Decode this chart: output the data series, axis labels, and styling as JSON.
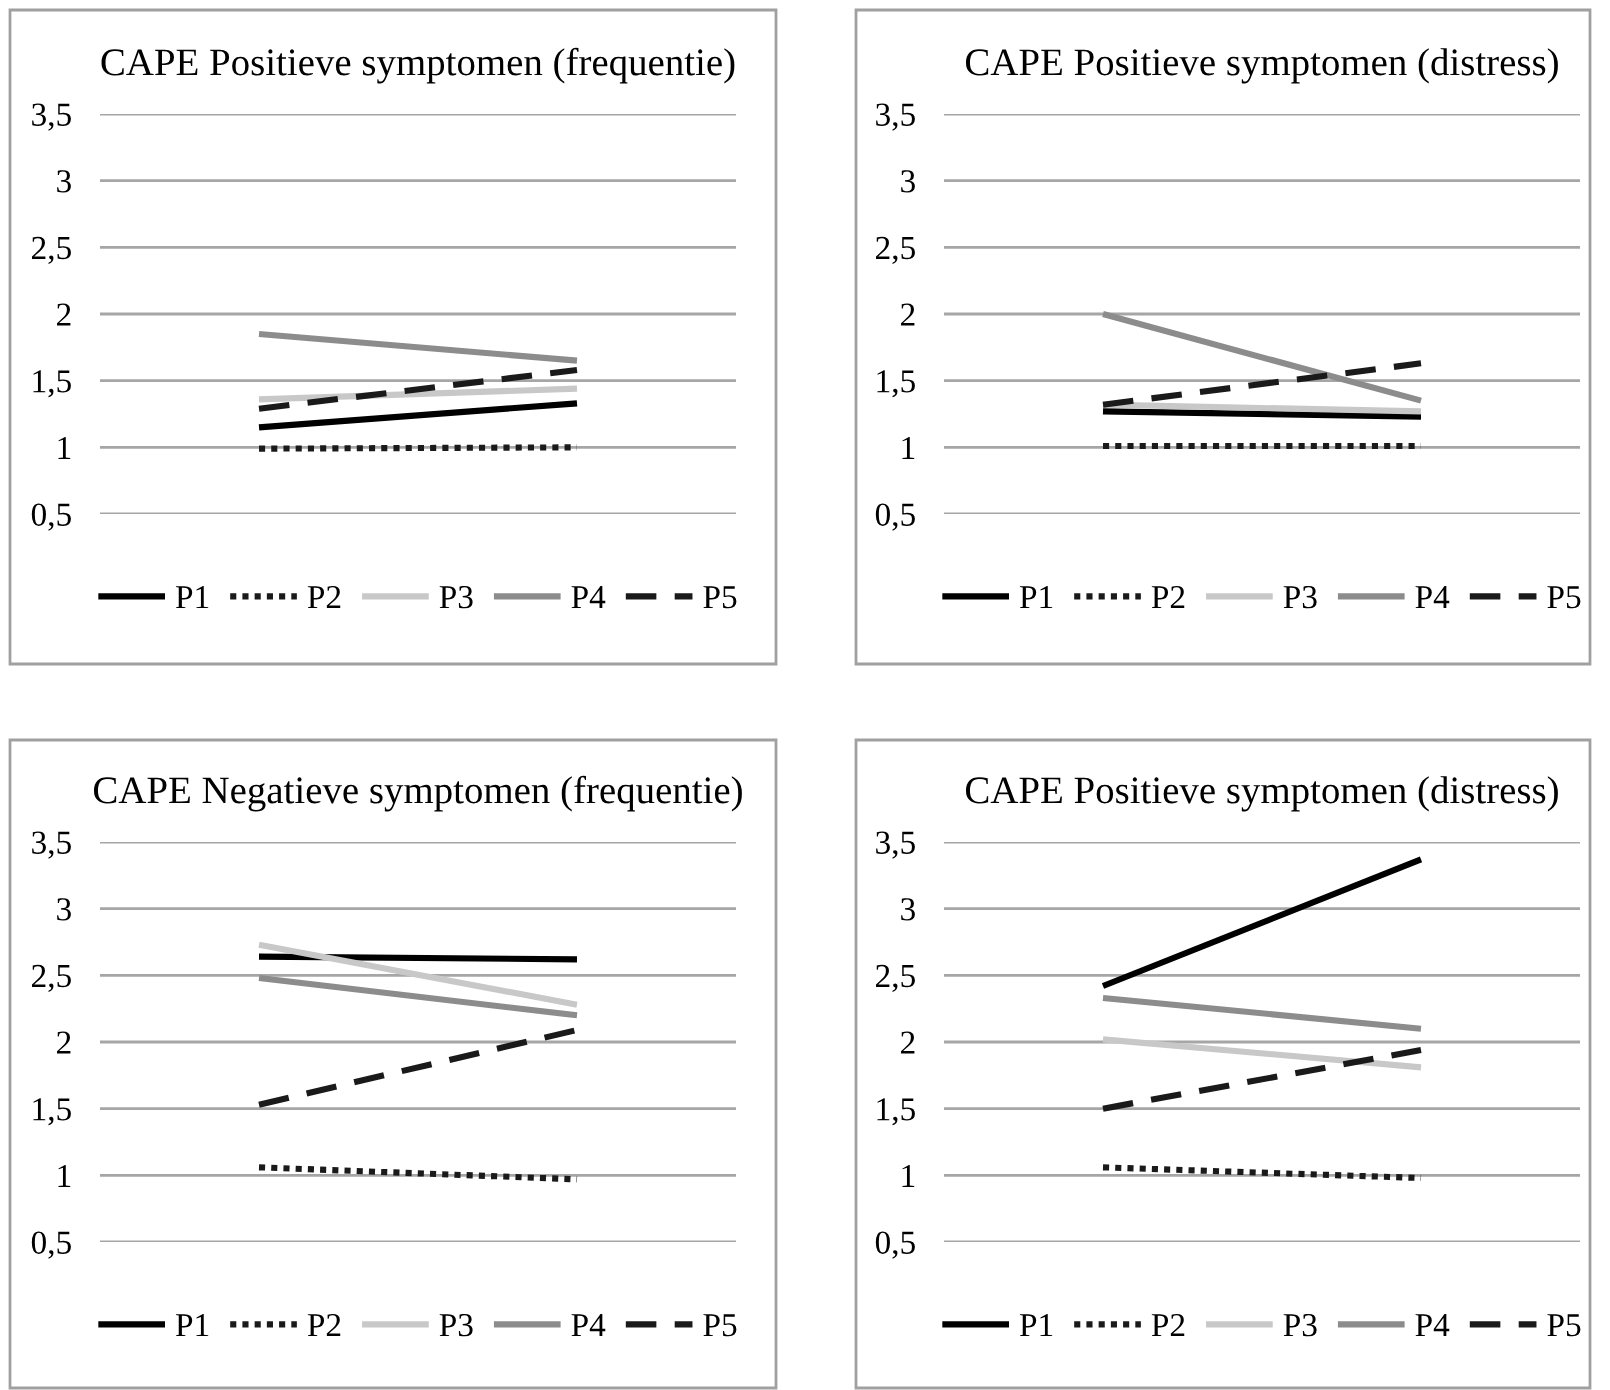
{
  "chart_data": [
    {
      "type": "line",
      "title": "CAPE Positieve symptomen (frequentie)",
      "categories": [
        null,
        null
      ],
      "ylim": [
        0.5,
        3.5
      ],
      "yticks": [
        {
          "value": 0.5,
          "label": "0,5"
        },
        1,
        {
          "value": 1.5,
          "label": "1,5"
        },
        2,
        {
          "value": 2.5,
          "label": "2,5"
        },
        3,
        {
          "value": 3.5,
          "label": "3,5"
        }
      ],
      "grid": "y",
      "legend": "bottom",
      "marker": "none",
      "series": [
        {
          "name": "P1",
          "color": "#000000",
          "line_style": "solid",
          "values": [
            1.15,
            1.33
          ]
        },
        {
          "name": "P2",
          "color": "#1a1a1a",
          "line_style": "dotted",
          "values": [
            0.99,
            1.0
          ]
        },
        {
          "name": "P3",
          "color": "#c8c8c8",
          "line_style": "solid",
          "values": [
            1.36,
            1.44
          ]
        },
        {
          "name": "P4",
          "color": "#8c8c8c",
          "line_style": "solid",
          "values": [
            1.85,
            1.65
          ]
        },
        {
          "name": "P5",
          "color": "#1a1a1a",
          "line_style": "dashed",
          "values": [
            1.29,
            1.58
          ]
        }
      ]
    },
    {
      "type": "line",
      "title": "CAPE Positieve symptomen (distress)",
      "categories": [
        null,
        null
      ],
      "ylim": [
        0.5,
        3.5
      ],
      "yticks": [
        {
          "value": 0.5,
          "label": "0,5"
        },
        1,
        {
          "value": 1.5,
          "label": "1,5"
        },
        2,
        {
          "value": 2.5,
          "label": "2,5"
        },
        3,
        {
          "value": 3.5,
          "label": "3,5"
        }
      ],
      "grid": "y",
      "legend": "bottom",
      "marker": "none",
      "series": [
        {
          "name": "P1",
          "color": "#000000",
          "line_style": "solid",
          "values": [
            1.27,
            1.23
          ]
        },
        {
          "name": "P2",
          "color": "#1a1a1a",
          "line_style": "dotted",
          "values": [
            1.01,
            1.01
          ]
        },
        {
          "name": "P3",
          "color": "#c8c8c8",
          "line_style": "solid",
          "values": [
            1.32,
            1.27
          ]
        },
        {
          "name": "P4",
          "color": "#8c8c8c",
          "line_style": "solid",
          "values": [
            2.0,
            1.35
          ]
        },
        {
          "name": "P5",
          "color": "#1a1a1a",
          "line_style": "dashed",
          "values": [
            1.32,
            1.63
          ]
        }
      ]
    },
    {
      "type": "line",
      "title": "CAPE Negatieve symptomen (frequentie)",
      "categories": [
        null,
        null
      ],
      "ylim": [
        0.5,
        3.5
      ],
      "yticks": [
        {
          "value": 0.5,
          "label": "0,5"
        },
        1,
        {
          "value": 1.5,
          "label": "1,5"
        },
        2,
        {
          "value": 2.5,
          "label": "2,5"
        },
        3,
        {
          "value": 3.5,
          "label": "3,5"
        }
      ],
      "grid": "y",
      "legend": "bottom",
      "marker": "none",
      "series": [
        {
          "name": "P1",
          "color": "#000000",
          "line_style": "solid",
          "values": [
            2.64,
            2.62
          ]
        },
        {
          "name": "P2",
          "color": "#1a1a1a",
          "line_style": "dotted",
          "values": [
            1.06,
            0.97
          ]
        },
        {
          "name": "P3",
          "color": "#c8c8c8",
          "line_style": "solid",
          "values": [
            2.73,
            2.28
          ]
        },
        {
          "name": "P4",
          "color": "#8c8c8c",
          "line_style": "solid",
          "values": [
            2.48,
            2.2
          ]
        },
        {
          "name": "P5",
          "color": "#1a1a1a",
          "line_style": "dashed",
          "values": [
            1.53,
            2.09
          ]
        }
      ]
    },
    {
      "type": "line",
      "title": "CAPE Positieve symptomen (distress)",
      "categories": [
        null,
        null
      ],
      "ylim": [
        0.5,
        3.5
      ],
      "yticks": [
        {
          "value": 0.5,
          "label": "0,5"
        },
        1,
        {
          "value": 1.5,
          "label": "1,5"
        },
        2,
        {
          "value": 2.5,
          "label": "2,5"
        },
        3,
        {
          "value": 3.5,
          "label": "3,5"
        }
      ],
      "grid": "y",
      "legend": "bottom",
      "marker": "none",
      "series": [
        {
          "name": "P1",
          "color": "#000000",
          "line_style": "solid",
          "values": [
            2.42,
            3.37
          ]
        },
        {
          "name": "P2",
          "color": "#1a1a1a",
          "line_style": "dotted",
          "values": [
            1.06,
            0.98
          ]
        },
        {
          "name": "P3",
          "color": "#c8c8c8",
          "line_style": "solid",
          "values": [
            2.02,
            1.81
          ]
        },
        {
          "name": "P4",
          "color": "#8c8c8c",
          "line_style": "solid",
          "values": [
            2.33,
            2.1
          ]
        },
        {
          "name": "P5",
          "color": "#1a1a1a",
          "line_style": "dashed",
          "values": [
            1.5,
            1.94
          ]
        }
      ]
    }
  ]
}
